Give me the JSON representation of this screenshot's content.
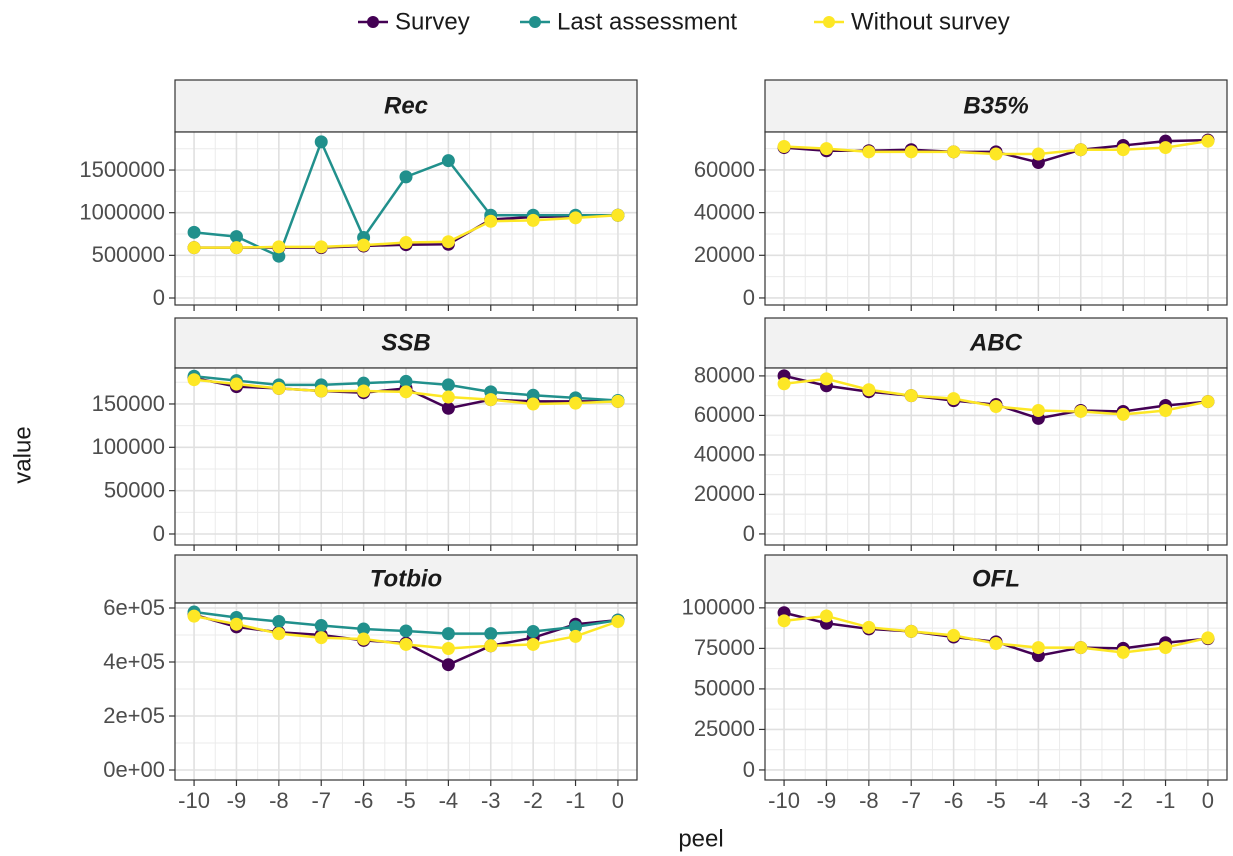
{
  "chart_data": [
    {
      "type": "line",
      "title": "Rec",
      "xlabel": "peel",
      "ylabel": "value",
      "x": [
        -10,
        -9,
        -8,
        -7,
        -6,
        -5,
        -4,
        -3,
        -2,
        -1,
        0
      ],
      "xlim": [
        -10.45,
        0.45
      ],
      "xticks": [
        -10,
        -9,
        -8,
        -7,
        -6,
        -5,
        -4,
        -3,
        -2,
        -1,
        0
      ],
      "ylim": [
        -82000,
        1946000
      ],
      "yticks": [
        0,
        500000,
        1000000,
        1500000
      ],
      "grid": true,
      "series": [
        {
          "name": "Survey",
          "color": "#440154",
          "values": [
            590000,
            590000,
            590000,
            590000,
            610000,
            625000,
            630000,
            920000,
            950000,
            960000,
            970000
          ]
        },
        {
          "name": "Last assessment",
          "color": "#21908C",
          "values": [
            770000,
            720000,
            490000,
            1830000,
            710000,
            1420000,
            1610000,
            970000,
            970000,
            970000,
            970000
          ]
        },
        {
          "name": "Without survey",
          "color": "#FDE725",
          "values": [
            590000,
            590000,
            600000,
            600000,
            620000,
            650000,
            660000,
            900000,
            910000,
            940000,
            970000
          ]
        }
      ]
    },
    {
      "type": "line",
      "title": "B35%",
      "x": [
        -10,
        -9,
        -8,
        -7,
        -6,
        -5,
        -4,
        -3,
        -2,
        -1,
        0
      ],
      "xlim": [
        -10.45,
        0.45
      ],
      "xticks": [
        -10,
        -9,
        -8,
        -7,
        -6,
        -5,
        -4,
        -3,
        -2,
        -1,
        0
      ],
      "ylim": [
        -3300,
        77800
      ],
      "yticks": [
        0,
        20000,
        40000,
        60000
      ],
      "grid": true,
      "series": [
        {
          "name": "Survey",
          "color": "#440154",
          "values": [
            70500,
            69000,
            69000,
            69500,
            68500,
            68500,
            63500,
            69500,
            71500,
            73500,
            74000
          ]
        },
        {
          "name": "Without survey",
          "color": "#FDE725",
          "values": [
            71000,
            70000,
            68500,
            68500,
            68500,
            67500,
            67500,
            69500,
            69500,
            70500,
            73500
          ]
        }
      ]
    },
    {
      "type": "line",
      "title": "SSB",
      "x": [
        -10,
        -9,
        -8,
        -7,
        -6,
        -5,
        -4,
        -3,
        -2,
        -1,
        0
      ],
      "xlim": [
        -10.45,
        0.45
      ],
      "xticks": [
        -10,
        -9,
        -8,
        -7,
        -6,
        -5,
        -4,
        -3,
        -2,
        -1,
        0
      ],
      "ylim": [
        -12700,
        191500
      ],
      "yticks": [
        0,
        50000,
        100000,
        150000
      ],
      "grid": true,
      "series": [
        {
          "name": "Survey",
          "color": "#440154",
          "values": [
            180000,
            170000,
            168000,
            165000,
            163000,
            168000,
            145000,
            155000,
            153000,
            153000,
            153000
          ]
        },
        {
          "name": "Last assessment",
          "color": "#21908C",
          "values": [
            182000,
            177000,
            172000,
            172000,
            174000,
            176000,
            172000,
            164000,
            160000,
            157000,
            154000
          ]
        },
        {
          "name": "Without survey",
          "color": "#FDE725",
          "values": [
            178000,
            173000,
            168000,
            165000,
            165000,
            164000,
            158000,
            155000,
            150000,
            151000,
            153000
          ]
        }
      ]
    },
    {
      "type": "line",
      "title": "ABC",
      "x": [
        -10,
        -9,
        -8,
        -7,
        -6,
        -5,
        -4,
        -3,
        -2,
        -1,
        0
      ],
      "xlim": [
        -10.45,
        0.45
      ],
      "xticks": [
        -10,
        -9,
        -8,
        -7,
        -6,
        -5,
        -4,
        -3,
        -2,
        -1,
        0
      ],
      "ylim": [
        -5600,
        84000
      ],
      "yticks": [
        0,
        20000,
        40000,
        60000,
        80000
      ],
      "grid": true,
      "series": [
        {
          "name": "Survey",
          "color": "#440154",
          "values": [
            80000,
            75000,
            72000,
            70000,
            67500,
            65500,
            58500,
            62500,
            62000,
            65000,
            67000
          ]
        },
        {
          "name": "Without survey",
          "color": "#FDE725",
          "values": [
            76000,
            78500,
            73000,
            70000,
            68500,
            64500,
            62500,
            62000,
            60500,
            62500,
            67000
          ]
        }
      ]
    },
    {
      "type": "line",
      "title": "Totbio",
      "x": [
        -10,
        -9,
        -8,
        -7,
        -6,
        -5,
        -4,
        -3,
        -2,
        -1,
        0
      ],
      "xlim": [
        -10.45,
        0.45
      ],
      "xticks": [
        -10,
        -9,
        -8,
        -7,
        -6,
        -5,
        -4,
        -3,
        -2,
        -1,
        0
      ],
      "ylim": [
        -37000,
        618500
      ],
      "yticks": [
        {
          "value": 0,
          "label": "0e+00"
        },
        {
          "value": 200000,
          "label": "2e+05"
        },
        {
          "value": 400000,
          "label": "4e+05"
        },
        {
          "value": 600000,
          "label": "6e+05"
        }
      ],
      "grid": true,
      "series": [
        {
          "name": "Survey",
          "color": "#440154",
          "values": [
            575000,
            530000,
            510000,
            500000,
            480000,
            470000,
            390000,
            460000,
            490000,
            540000,
            555000
          ]
        },
        {
          "name": "Last assessment",
          "color": "#21908C",
          "values": [
            585000,
            565000,
            550000,
            535000,
            522000,
            515000,
            505000,
            505000,
            513000,
            530000,
            555000
          ]
        },
        {
          "name": "Without survey",
          "color": "#FDE725",
          "values": [
            570000,
            540000,
            505000,
            490000,
            485000,
            465000,
            450000,
            460000,
            465000,
            495000,
            550000
          ]
        }
      ]
    },
    {
      "type": "line",
      "title": "OFL",
      "x": [
        -10,
        -9,
        -8,
        -7,
        -6,
        -5,
        -4,
        -3,
        -2,
        -1,
        0
      ],
      "xlim": [
        -10.45,
        0.45
      ],
      "xticks": [
        -10,
        -9,
        -8,
        -7,
        -6,
        -5,
        -4,
        -3,
        -2,
        -1,
        0
      ],
      "ylim": [
        -6200,
        103000
      ],
      "yticks": [
        0,
        25000,
        50000,
        75000,
        100000
      ],
      "grid": true,
      "series": [
        {
          "name": "Survey",
          "color": "#440154",
          "values": [
            97000,
            90500,
            87000,
            85500,
            82000,
            79000,
            70500,
            75500,
            75000,
            78500,
            81000
          ]
        },
        {
          "name": "Without survey",
          "color": "#FDE725",
          "values": [
            92000,
            95000,
            88000,
            85500,
            83000,
            78000,
            75500,
            75500,
            72500,
            75500,
            81500
          ]
        }
      ]
    }
  ]
}
